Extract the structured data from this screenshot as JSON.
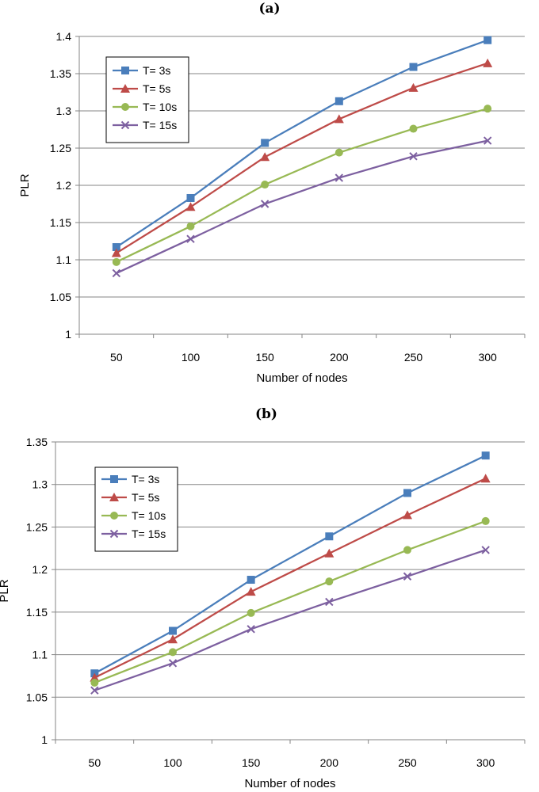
{
  "chart_data": [
    {
      "type": "line",
      "title": "(a)",
      "xlabel": "Number of nodes",
      "ylabel": "PLR",
      "categories": [
        "50",
        "100",
        "150",
        "200",
        "250",
        "300"
      ],
      "ylim": [
        1,
        1.4
      ],
      "yticks": [
        "1",
        "1.05",
        "1.1",
        "1.15",
        "1.2",
        "1.25",
        "1.3",
        "1.35",
        "1.4"
      ],
      "grid": true,
      "legend_position": "top-left",
      "series": [
        {
          "name": "T= 3s",
          "color": "#4a7ebb",
          "marker": "square",
          "values": [
            1.117,
            1.183,
            1.257,
            1.313,
            1.359,
            1.395
          ]
        },
        {
          "name": "T= 5s",
          "color": "#be4b48",
          "marker": "triangle",
          "values": [
            1.109,
            1.171,
            1.238,
            1.289,
            1.331,
            1.364
          ]
        },
        {
          "name": "T= 10s",
          "color": "#98b954",
          "marker": "circle",
          "values": [
            1.097,
            1.145,
            1.201,
            1.244,
            1.276,
            1.303
          ]
        },
        {
          "name": "T= 15s",
          "color": "#7d60a0",
          "marker": "x",
          "values": [
            1.082,
            1.128,
            1.175,
            1.21,
            1.239,
            1.26
          ]
        }
      ]
    },
    {
      "type": "line",
      "title": "(b)",
      "xlabel": "Number of nodes",
      "ylabel": "PLR",
      "categories": [
        "50",
        "100",
        "150",
        "200",
        "250",
        "300"
      ],
      "ylim": [
        1,
        1.35
      ],
      "yticks": [
        "1",
        "1.05",
        "1.1",
        "1.15",
        "1.2",
        "1.25",
        "1.3",
        "1.35"
      ],
      "grid": true,
      "legend_position": "top-left",
      "series": [
        {
          "name": "T= 3s",
          "color": "#4a7ebb",
          "marker": "square",
          "values": [
            1.078,
            1.128,
            1.188,
            1.239,
            1.29,
            1.334
          ]
        },
        {
          "name": "T= 5s",
          "color": "#be4b48",
          "marker": "triangle",
          "values": [
            1.073,
            1.118,
            1.174,
            1.219,
            1.264,
            1.307
          ]
        },
        {
          "name": "T= 10s",
          "color": "#98b954",
          "marker": "circle",
          "values": [
            1.067,
            1.103,
            1.149,
            1.186,
            1.223,
            1.257
          ]
        },
        {
          "name": "T= 15s",
          "color": "#7d60a0",
          "marker": "x",
          "values": [
            1.058,
            1.09,
            1.13,
            1.162,
            1.192,
            1.223
          ]
        }
      ]
    }
  ]
}
